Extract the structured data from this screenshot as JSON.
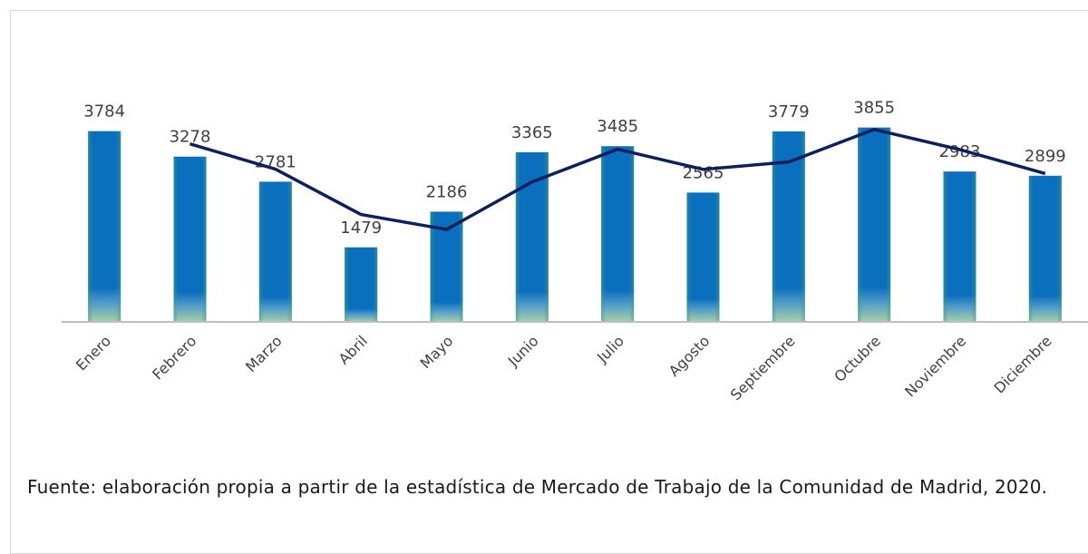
{
  "chart_data": {
    "type": "bar",
    "categories": [
      "Enero",
      "Febrero",
      "Marzo",
      "Abril",
      "Mayo",
      "Junio",
      "Julio",
      "Agosto",
      "Septiembre",
      "Octubre",
      "Noviembre",
      "Diciembre"
    ],
    "series": [
      {
        "type": "bar",
        "color": "#0070c0",
        "values": [
          3784,
          3278,
          2781,
          1479,
          2186,
          3365,
          3485,
          2565,
          3779,
          3855,
          2983,
          2899
        ]
      },
      {
        "type": "line",
        "color": "#0d1f5c",
        "values": [
          null,
          3531,
          3030,
          2130,
          1833,
          2776,
          3425,
          3025,
          3172,
          3817,
          3419,
          2941
        ]
      }
    ],
    "ylim": [
      0,
      5000
    ],
    "caption": "Fuente: elaboración propia a partir de la estadística de Mercado de Trabajo de la Comunidad de Madrid, 2020."
  }
}
